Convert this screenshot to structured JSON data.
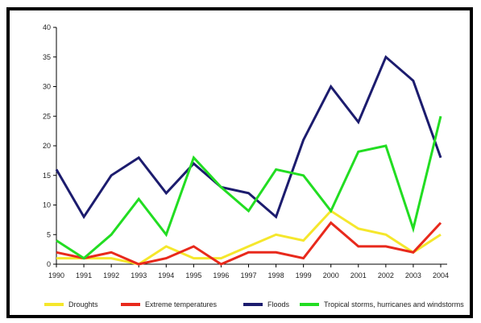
{
  "chart_data": {
    "type": "line",
    "title": "",
    "xlabel": "",
    "ylabel": "",
    "x": [
      "1990",
      "1991",
      "1992",
      "1993",
      "1994",
      "1995",
      "1996",
      "1997",
      "1998",
      "1999",
      "2000",
      "2001",
      "2002",
      "2003",
      "2004"
    ],
    "ylim": [
      0,
      40
    ],
    "yticks": [
      "0",
      "5",
      "10",
      "15",
      "20",
      "25",
      "30",
      "35",
      "40"
    ],
    "grid": false,
    "legend_position": "bottom",
    "series": [
      {
        "name": "Droughts",
        "color": "#f5e72c",
        "values": [
          1,
          1,
          1,
          0,
          3,
          1,
          1,
          3,
          5,
          4,
          9,
          6,
          5,
          2,
          5
        ]
      },
      {
        "name": "Extreme temperatures",
        "color": "#e8291c",
        "values": [
          2,
          1,
          2,
          0,
          1,
          3,
          0,
          2,
          2,
          1,
          7,
          3,
          3,
          2,
          7
        ]
      },
      {
        "name": "Floods",
        "color": "#1c1c6e",
        "values": [
          16,
          8,
          15,
          18,
          12,
          17,
          13,
          12,
          8,
          21,
          30,
          24,
          35,
          31,
          18
        ]
      },
      {
        "name": "Tropical storms, hurricanes and windstorms",
        "color": "#22dd22",
        "values": [
          4,
          1,
          5,
          11,
          5,
          18,
          13,
          9,
          16,
          15,
          9,
          19,
          20,
          6,
          25
        ]
      }
    ]
  }
}
